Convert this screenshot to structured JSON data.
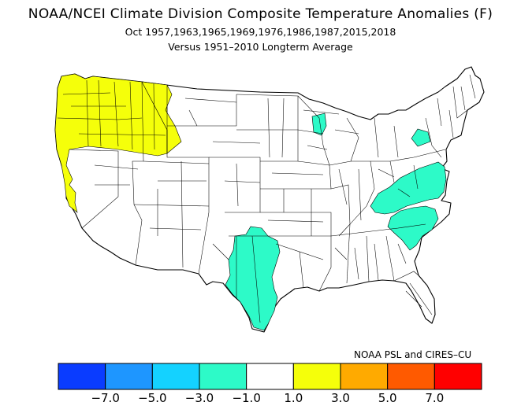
{
  "title": "NOAA/NCEI Climate Division Composite Temperature Anomalies (F)",
  "subtitle": "Oct  1957,1963,1965,1969,1976,1986,1987,2015,2018",
  "baseline": "Versus 1951–2010 Longterm Average",
  "credit": "NOAA PSL and CIRES–CU",
  "legend": {
    "bins": [
      {
        "color": "#0a3cff"
      },
      {
        "color": "#1e96ff"
      },
      {
        "color": "#14d2ff"
      },
      {
        "color": "#2dfac8"
      },
      {
        "color": "#ffffff"
      },
      {
        "color": "#f5ff0a"
      },
      {
        "color": "#ffaa00"
      },
      {
        "color": "#ff5a00"
      },
      {
        "color": "#ff0000"
      }
    ],
    "ticks": [
      "−7.0",
      "−5.0",
      "−3.0",
      "−1.0",
      "1.0",
      "3.0",
      "5.0",
      "7.0"
    ]
  },
  "map": {
    "regions": [
      {
        "label": "Pacific Northwest and Northern California coast",
        "anomaly_bin": "1.0 to 3.0",
        "color": "#f5ff0a"
      },
      {
        "label": "Upper Michigan division",
        "anomaly_bin": "-3.0 to -1.0",
        "color": "#2dfac8"
      },
      {
        "label": "Western New York division",
        "anomaly_bin": "-3.0 to -1.0",
        "color": "#2dfac8"
      },
      {
        "label": "Central Appalachians and Mid-Atlantic",
        "anomaly_bin": "-3.0 to -1.0",
        "color": "#2dfac8"
      },
      {
        "label": "Carolinas Piedmont",
        "anomaly_bin": "-3.0 to -1.0",
        "color": "#2dfac8"
      },
      {
        "label": "Central and South Texas",
        "anomaly_bin": "-3.0 to -1.0",
        "color": "#2dfac8"
      }
    ]
  }
}
